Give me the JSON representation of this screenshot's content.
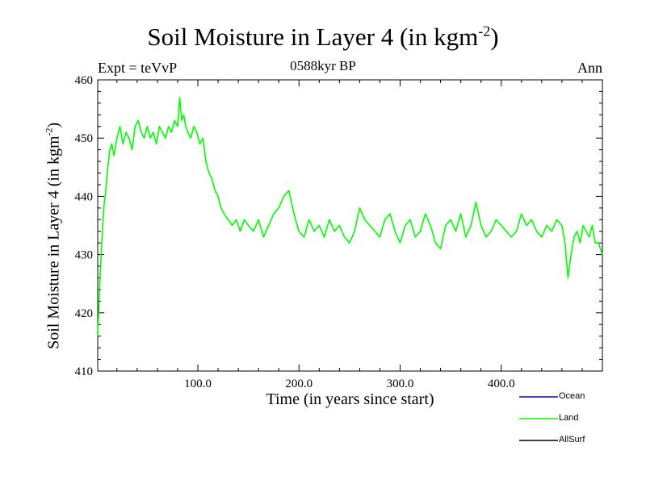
{
  "header": {
    "title": "Soil Moisture in Layer 4 (in kgm",
    "title_sup": "-2",
    "title_close": ")",
    "subtitle": "0588kyr BP",
    "expt": "Expt = teVvP",
    "season": "Ann"
  },
  "legend": {
    "items": [
      {
        "label": "Ocean",
        "color": "#0000ff"
      },
      {
        "label": "Land",
        "color": "#00ff00"
      },
      {
        "label": "AllSurf",
        "color": "#000000"
      }
    ]
  },
  "chart_data": {
    "type": "line",
    "title": "Soil Moisture in Layer 4 (in kgm-2)",
    "xlabel": "Time (in years since start)",
    "ylabel": "Soil Moisture in Layer 4 (in kgm-2)",
    "ylabel_main": "Soil Moisture in Layer 4 (in kgm",
    "ylabel_sup": "-2",
    "ylabel_close": ")",
    "xlim": [
      1,
      500
    ],
    "ylim": [
      410,
      460
    ],
    "xticks": [
      100,
      200,
      300,
      400
    ],
    "xtick_labels": [
      "100.0",
      "200.0",
      "300.0",
      "400.0"
    ],
    "yticks": [
      410,
      420,
      430,
      440,
      450,
      460
    ],
    "ytick_labels": [
      "410",
      "420",
      "430",
      "440",
      "450",
      "460"
    ],
    "grid": false,
    "legend_position": "bottom-right",
    "series": [
      {
        "name": "Land",
        "color": "#00ff00",
        "x": [
          1,
          3,
          5,
          7,
          9,
          11,
          13,
          15,
          17,
          20,
          23,
          26,
          29,
          32,
          35,
          38,
          41,
          44,
          47,
          50,
          53,
          56,
          59,
          62,
          65,
          68,
          71,
          74,
          77,
          80,
          82,
          84,
          86,
          88,
          90,
          93,
          96,
          99,
          102,
          105,
          108,
          111,
          114,
          117,
          120,
          123,
          126,
          130,
          134,
          138,
          142,
          146,
          150,
          155,
          160,
          165,
          170,
          175,
          180,
          185,
          190,
          195,
          200,
          205,
          210,
          215,
          220,
          225,
          230,
          235,
          240,
          245,
          250,
          255,
          260,
          265,
          270,
          275,
          280,
          285,
          290,
          295,
          300,
          305,
          310,
          315,
          320,
          325,
          330,
          335,
          340,
          345,
          350,
          355,
          360,
          365,
          370,
          375,
          380,
          385,
          390,
          395,
          400,
          405,
          410,
          415,
          420,
          425,
          430,
          435,
          440,
          445,
          450,
          455,
          460,
          463,
          466,
          469,
          472,
          475,
          478,
          481,
          484,
          487,
          490,
          493,
          496,
          500
        ],
        "y": [
          416,
          425,
          432,
          438,
          441,
          445,
          448,
          449,
          447,
          450,
          452,
          449,
          451,
          450,
          448,
          452,
          453,
          451,
          450,
          452,
          450,
          451,
          449,
          452,
          451,
          450,
          452,
          451,
          453,
          452,
          457,
          453,
          454,
          452,
          451,
          450,
          452,
          451,
          449,
          450,
          446,
          444,
          443,
          441,
          440,
          438,
          437,
          436,
          435,
          436,
          434,
          436,
          435,
          434,
          436,
          433,
          435,
          437,
          438,
          440,
          441,
          437,
          434,
          433,
          436,
          434,
          435,
          433,
          436,
          434,
          435,
          433,
          432,
          434,
          438,
          436,
          435,
          434,
          433,
          436,
          437,
          434,
          432,
          435,
          436,
          433,
          434,
          437,
          435,
          432,
          431,
          435,
          436,
          434,
          437,
          433,
          435,
          439,
          435,
          433,
          434,
          436,
          435,
          434,
          433,
          434,
          437,
          435,
          436,
          434,
          433,
          435,
          434,
          436,
          435,
          432,
          426,
          430,
          433,
          434,
          432,
          435,
          434,
          433,
          435,
          432,
          432,
          430
        ]
      }
    ]
  }
}
